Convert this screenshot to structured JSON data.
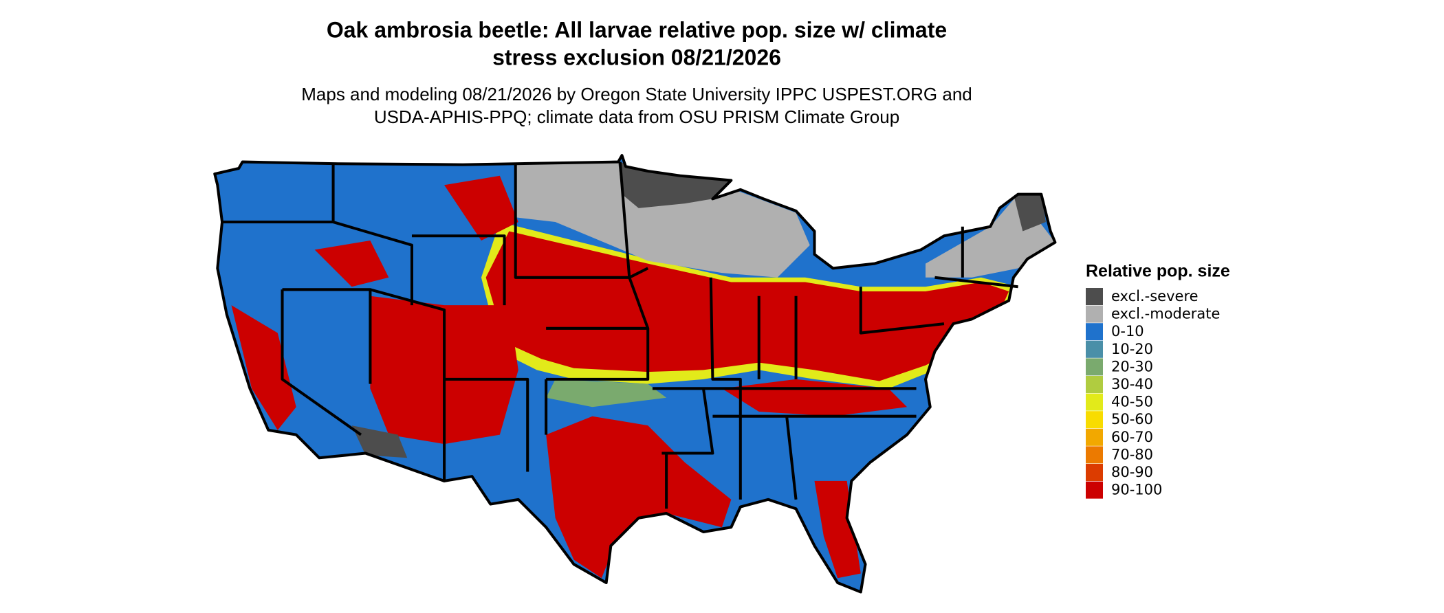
{
  "title": {
    "lines": [
      "Oak ambrosia beetle: All larvae relative pop. size w/ climate",
      "stress exclusion 08/21/2026"
    ]
  },
  "subtitle": {
    "lines": [
      "Maps and modeling 08/21/2026 by Oregon State University IPPC USPEST.ORG and",
      "USDA-APHIS-PPQ; climate data from OSU PRISM Climate Group"
    ]
  },
  "legend": {
    "title": "Relative pop. size",
    "items": [
      {
        "label": "excl.-severe",
        "color": "#4d4d4d"
      },
      {
        "label": "excl.-moderate",
        "color": "#b0b0b0"
      },
      {
        "label": "0-10",
        "color": "#1f72cc"
      },
      {
        "label": "10-20",
        "color": "#4a8fa8"
      },
      {
        "label": "20-30",
        "color": "#7aaa6e"
      },
      {
        "label": "30-40",
        "color": "#b0cc40"
      },
      {
        "label": "40-50",
        "color": "#e2ea1a"
      },
      {
        "label": "50-60",
        "color": "#f8dc00"
      },
      {
        "label": "60-70",
        "color": "#f2a800"
      },
      {
        "label": "70-80",
        "color": "#ec7a00"
      },
      {
        "label": "80-90",
        "color": "#dc3c00"
      },
      {
        "label": "90-100",
        "color": "#cc0000"
      }
    ]
  }
}
